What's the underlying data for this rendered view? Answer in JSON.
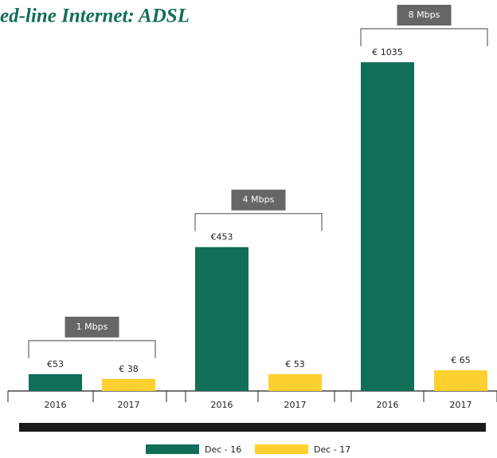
{
  "chart_data": {
    "type": "bar",
    "title": "ed-line Internet: ADSL",
    "categories": [
      "1 Mbps",
      "4 Mbps",
      "8 Mbps"
    ],
    "bar_labels": [
      "2016",
      "2017"
    ],
    "series": [
      {
        "name": "Dec - 16",
        "color": "#116e57",
        "values": [
          53,
          453,
          1035
        ],
        "value_labels": [
          "€53",
          "€453",
          "€ 1035"
        ]
      },
      {
        "name": "Dec - 17",
        "color": "#fdd02f",
        "values": [
          38,
          53,
          65
        ],
        "value_labels": [
          "€ 38",
          "€ 53",
          "€ 65"
        ]
      }
    ],
    "legend": "bottom"
  }
}
